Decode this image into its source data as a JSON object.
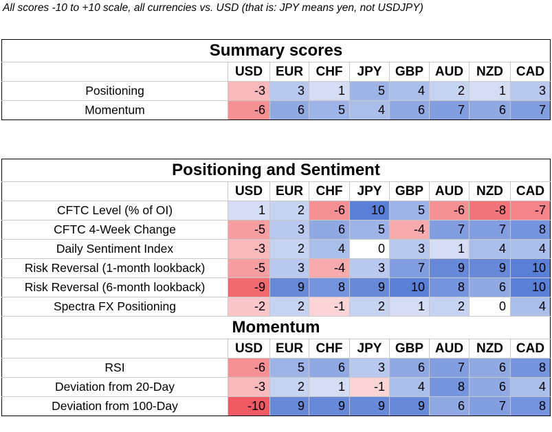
{
  "caption": "All scores -10 to +10 scale, all currencies vs. USD (that is: JPY means yen, not USDJPY)",
  "currencies": [
    "USD",
    "EUR",
    "CHF",
    "JPY",
    "GBP",
    "AUD",
    "NZD",
    "CAD"
  ],
  "colors": {
    "positive": "#5a7fd6",
    "negative": "#f05a62",
    "neutral": "#ffffff"
  },
  "summary": {
    "title": "Summary scores",
    "rows": [
      {
        "label": "Positioning",
        "values": [
          -3,
          3,
          1,
          5,
          4,
          2,
          1,
          3
        ]
      },
      {
        "label": "Momentum",
        "values": [
          -6,
          6,
          5,
          4,
          6,
          7,
          6,
          7
        ]
      }
    ]
  },
  "positioning": {
    "title": "Positioning and Sentiment",
    "rows": [
      {
        "label": "CFTC Level (% of OI)",
        "values": [
          1,
          2,
          -6,
          10,
          5,
          -6,
          -8,
          -7
        ]
      },
      {
        "label": "CFTC 4-Week Change",
        "values": [
          -5,
          3,
          6,
          5,
          -4,
          7,
          7,
          8
        ]
      },
      {
        "label": "Daily Sentiment Index",
        "values": [
          -3,
          2,
          4,
          0,
          3,
          1,
          4,
          4
        ]
      },
      {
        "label": "Risk Reversal (1-month lookback)",
        "values": [
          -5,
          3,
          -4,
          3,
          7,
          9,
          9,
          10
        ]
      },
      {
        "label": "Risk Reversal (6-month lookback)",
        "values": [
          -9,
          9,
          8,
          9,
          10,
          8,
          6,
          10
        ]
      },
      {
        "label": "Spectra FX Positioning",
        "values": [
          -2,
          2,
          -1,
          2,
          1,
          2,
          0,
          4
        ]
      }
    ]
  },
  "momentum": {
    "title": "Momentum",
    "rows": [
      {
        "label": "RSI",
        "values": [
          -6,
          5,
          6,
          3,
          6,
          7,
          6,
          8
        ]
      },
      {
        "label": "Deviation from 20-Day",
        "values": [
          -3,
          2,
          1,
          -1,
          4,
          8,
          6,
          4
        ]
      },
      {
        "label": "Deviation from 100-Day",
        "values": [
          -10,
          9,
          9,
          9,
          9,
          6,
          7,
          8
        ]
      }
    ]
  }
}
